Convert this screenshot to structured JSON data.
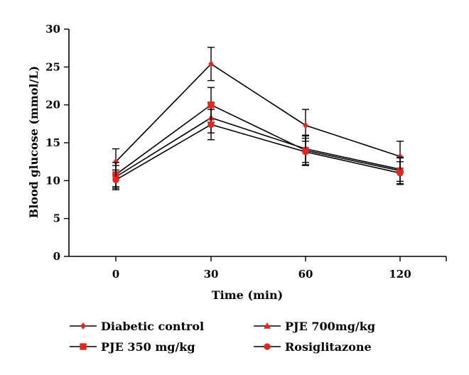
{
  "chart_data": {
    "type": "line",
    "xlabel": "Time (min)",
    "ylabel": "Blood glucose (mmol/L)",
    "categories": [
      "0",
      "30",
      "60",
      "120"
    ],
    "ylim": [
      0,
      30
    ],
    "yticks": [
      0,
      5,
      10,
      15,
      20,
      25,
      30
    ],
    "legend_position": "bottom",
    "grid": false,
    "series": [
      {
        "name": "Diabetic control",
        "marker": "diamond",
        "values": [
          12.5,
          25.4,
          17.3,
          13.2
        ],
        "errors": [
          1.7,
          2.2,
          2.1,
          2.0
        ]
      },
      {
        "name": "PJE 700mg/kg",
        "marker": "triangle",
        "values": [
          10.5,
          18.3,
          14.2,
          11.5
        ],
        "errors": [
          1.5,
          2.0,
          1.8,
          1.6
        ]
      },
      {
        "name": "PJE 350 mg/kg",
        "marker": "square",
        "values": [
          10.8,
          20.0,
          14.0,
          11.3
        ],
        "errors": [
          1.6,
          2.3,
          1.9,
          1.7
        ]
      },
      {
        "name": "Rosiglitazone",
        "marker": "circle",
        "values": [
          10.1,
          17.4,
          13.8,
          11.0
        ],
        "errors": [
          1.3,
          2.0,
          1.8,
          1.5
        ]
      }
    ],
    "colors": {
      "marker": "#e8251c",
      "line": "#000000"
    }
  }
}
